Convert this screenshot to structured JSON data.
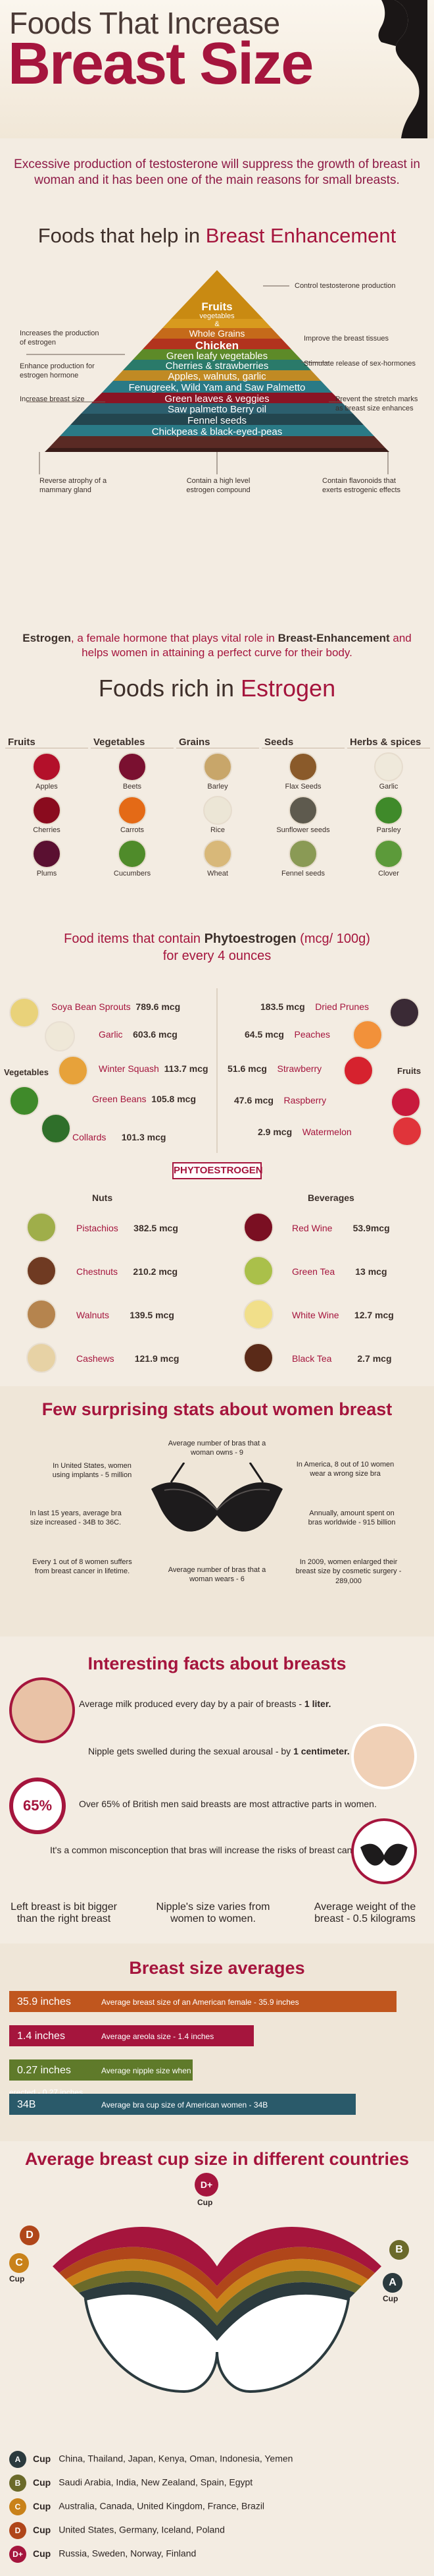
{
  "header": {
    "title_line1": "Foods That Increase",
    "title_line2": "Breast Size",
    "intro": "Excessive production of testosterone will suppress the growth of breast in woman and it has been one of the main reasons for small breasts."
  },
  "enhancement": {
    "title_a": "Foods that help in ",
    "title_b": "Breast Enhancement",
    "pyramid_bands": [
      "Fruits",
      "vegetables",
      "&",
      "Whole Grains",
      "Chicken",
      "Green leafy vegetables",
      "Cherries & strawberries",
      "Apples, walnuts, garlic",
      "Fenugreek, Wild Yam and Saw Palmetto",
      "Green leaves & veggies",
      "Saw palmetto Berry oil",
      "Fennel seeds",
      "Chickpeas & black-eyed-peas"
    ],
    "labels": {
      "control_testosterone": "Control testosterone production",
      "increase_production": "Increases the production of estrogen",
      "improve_tissues": "Improve the breast tissues",
      "enhance_production": "Enhance production for estrogen hormone",
      "stimulate_release": "Stimulate release of sex-hormones",
      "increase_size": "Increase breast size",
      "prevent_stretch": "Prevent the stretch marks as breast size enhances",
      "reverse_atrophy": "Reverse atrophy of a mammary gland",
      "high_level": "Contain a high level estrogen compound",
      "flavonoids": "Contain flavonoids that exerts estrogenic effects"
    }
  },
  "estrogen_para": {
    "a": "Estrogen",
    "b": ", a female hormone that plays vital role in ",
    "c": "Breast-Enhancement",
    "d": " and helps women in attaining a perfect curve for their body."
  },
  "rich": {
    "title_a": "Foods rich in ",
    "title_b": "Estrogen",
    "columns": [
      {
        "head": "Fruits",
        "items": [
          "Apples",
          "Cherries",
          "Plums"
        ],
        "colors": [
          "#b3102a",
          "#8a0b1e",
          "#5a1031"
        ]
      },
      {
        "head": "Vegetables",
        "items": [
          "Beets",
          "Carrots",
          "Cucumbers"
        ],
        "colors": [
          "#7a1030",
          "#e46a16",
          "#4f8b2a"
        ]
      },
      {
        "head": "Grains",
        "items": [
          "Barley",
          "Rice",
          "Wheat"
        ],
        "colors": [
          "#c8a66a",
          "#ece6d6",
          "#d8b879"
        ]
      },
      {
        "head": "Seeds",
        "items": [
          "Flax Seeds",
          "Sunflower seeds",
          "Fennel seeds"
        ],
        "colors": [
          "#8a5a2a",
          "#5e5a4e",
          "#8a9a55"
        ]
      },
      {
        "head": "Herbs & spices",
        "items": [
          "Garlic",
          "Parsley",
          "Clover"
        ],
        "colors": [
          "#efe9db",
          "#3f8a2a",
          "#5c9a3a"
        ]
      }
    ]
  },
  "phyto": {
    "title_a": "Food items that contain ",
    "title_b": "Phytoestrogen",
    "title_c": " (mcg/ 100g)",
    "title_d": "for every 4 ounces",
    "side_left": "Vegetables",
    "side_right": "Fruits",
    "veg": [
      {
        "name": "Soya Bean Sprouts",
        "value": "789.6 mcg",
        "color": "#e9d27a"
      },
      {
        "name": "Garlic",
        "value": "603.6 mcg",
        "color": "#efe8d8"
      },
      {
        "name": "Winter Squash",
        "value": "113.7 mcg",
        "color": "#e7a23a"
      },
      {
        "name": "Green Beans",
        "value": "105.8 mcg",
        "color": "#3f8a2a"
      },
      {
        "name": "Collards",
        "value": "101.3 mcg",
        "color": "#2f6f2a"
      }
    ],
    "fruit": [
      {
        "name": "Dried Prunes",
        "value": "183.5 mcg",
        "color": "#3a2a35"
      },
      {
        "name": "Peaches",
        "value": "64.5 mcg",
        "color": "#f2913a"
      },
      {
        "name": "Strawberry",
        "value": "51.6 mcg",
        "color": "#d6222e"
      },
      {
        "name": "Raspberry",
        "value": "47.6 mcg",
        "color": "#c81a3c"
      },
      {
        "name": "Watermelon",
        "value": "2.9 mcg",
        "color": "#e0343a"
      }
    ],
    "banner": "PHYTOESTROGEN",
    "nuts_head": "Nuts",
    "bev_head": "Beverages",
    "nuts": [
      {
        "name": "Pistachios",
        "value": "382.5 mcg",
        "color": "#9fae4a"
      },
      {
        "name": "Chestnuts",
        "value": "210.2 mcg",
        "color": "#6f3a22"
      },
      {
        "name": "Walnuts",
        "value": "139.5 mcg",
        "color": "#b5844e"
      },
      {
        "name": "Cashews",
        "value": "121.9 mcg",
        "color": "#e7d2a5"
      }
    ],
    "bev": [
      {
        "name": "Red Wine",
        "value": "53.9mcg",
        "color": "#7a0f22"
      },
      {
        "name": "Green Tea",
        "value": "13 mcg",
        "color": "#aac04a"
      },
      {
        "name": "White Wine",
        "value": "12.7 mcg",
        "color": "#f1df8a"
      },
      {
        "name": "Black Tea",
        "value": "2.7 mcg",
        "color": "#5a2a18"
      }
    ]
  },
  "stats": {
    "title": "Few surprising stats about women breast",
    "items": [
      "Average number of bras that a woman owns - 9",
      "In United States, women using implants - 5 million",
      "In America, 8 out of 10 women wear a wrong size bra",
      "In last 15 years, average bra size increased - 34B to 36C.",
      "Annually, amount spent on bras worldwide - 915 billion",
      "Every 1 out of 8 women suffers from breast cancer in lifetime.",
      "In 2009, women enlarged their breast size by cosmetic surgery - 289,000",
      "Average number of bras that a woman wears - 6"
    ]
  },
  "facts": {
    "title": "Interesting facts about breasts",
    "milk_a": "Average milk produced every day by a pair of breasts - ",
    "milk_b": "1 liter.",
    "nipple_a": "Nipple gets swelled during the sexual arousal - by ",
    "nipple_b": "1 centimeter.",
    "pct": "65%",
    "british": "Over 65% of British men said breasts are most attractive parts in women.",
    "misconception": "It's a common misconception that bras will increase the risks of breast cancer.",
    "left_breast": "Left breast is bit bigger than the right breast",
    "nipple_size": "Nipple's size varies from women to women.",
    "weight": "Average weight of the breast - 0.5 kilograms"
  },
  "averages": {
    "title": "Breast size averages",
    "bars": [
      {
        "value": "35.9 inches",
        "label": "Average breast size of an American female - 35.9 inches",
        "color": "#c0561e",
        "fill": 0.95
      },
      {
        "value": "1.4 inches",
        "label": "Average areola size - 1.4 inches",
        "color": "#a5153d",
        "fill": 0.6
      },
      {
        "value": "0.27 inches",
        "label": "Average nipple size when erected - 0.27 inches",
        "color": "#5f7a2a",
        "fill": 0.45
      },
      {
        "value": "34B",
        "label": "Average bra cup size of American women - 34B",
        "color": "#2a5a6a",
        "fill": 0.85
      }
    ]
  },
  "cups": {
    "title": "Average breast cup size in different countries",
    "labels": {
      "dplus": "D+",
      "d": "D",
      "c": "C",
      "b": "B",
      "a": "A",
      "word": "Cup"
    },
    "rows": [
      {
        "cup": "A",
        "color": "#2b3a3e",
        "countries": "China, Thailand, Japan, Kenya, Oman, Indonesia, Yemen"
      },
      {
        "cup": "B",
        "color": "#6b6a2a",
        "countries": "Saudi Arabia, India, New Zealand, Spain, Egypt"
      },
      {
        "cup": "C",
        "color": "#c9821a",
        "countries": "Australia, Canada, United Kingdom, France, Brazil"
      },
      {
        "cup": "D",
        "color": "#b0461a",
        "countries": "United States, Germany, Iceland, Poland"
      },
      {
        "cup": "D+",
        "color": "#a5153d",
        "countries": "Russia, Sweden, Norway, Finland"
      }
    ]
  }
}
